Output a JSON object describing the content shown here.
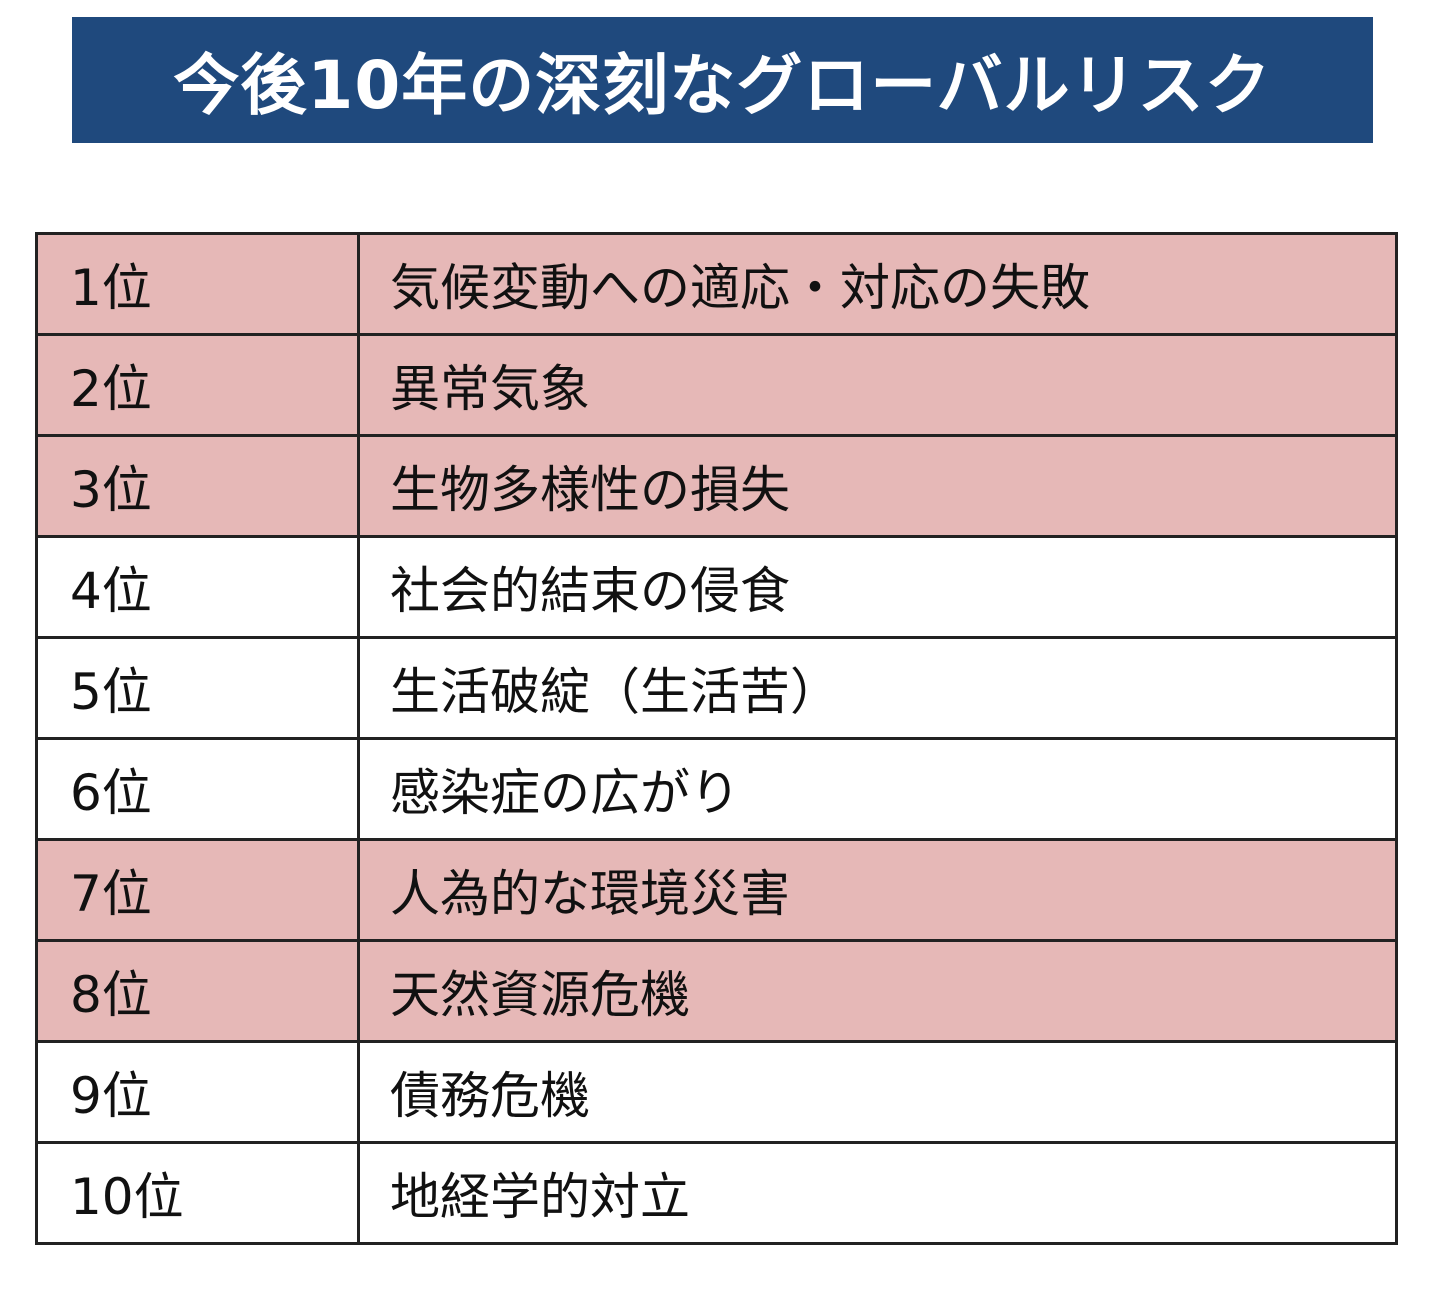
{
  "title": "今後10年の深刻なグローバルリスク",
  "colors": {
    "banner": "#1f497d",
    "highlight_row": "#e6b8b7",
    "normal_row": "#ffffff"
  },
  "risks": [
    {
      "rank": "1位",
      "risk": "気候変動への適応・対応の失敗",
      "highlight": true
    },
    {
      "rank": "2位",
      "risk": "異常気象",
      "highlight": true
    },
    {
      "rank": "3位",
      "risk": "生物多様性の損失",
      "highlight": true
    },
    {
      "rank": "4位",
      "risk": "社会的結束の侵食",
      "highlight": false
    },
    {
      "rank": "5位",
      "risk": "生活破綻（生活苦）",
      "highlight": false
    },
    {
      "rank": "6位",
      "risk": "感染症の広がり",
      "highlight": false
    },
    {
      "rank": "7位",
      "risk": "人為的な環境災害",
      "highlight": true
    },
    {
      "rank": "8位",
      "risk": "天然資源危機",
      "highlight": true
    },
    {
      "rank": "9位",
      "risk": "債務危機",
      "highlight": false
    },
    {
      "rank": "10位",
      "risk": "地経学的対立",
      "highlight": false
    }
  ]
}
